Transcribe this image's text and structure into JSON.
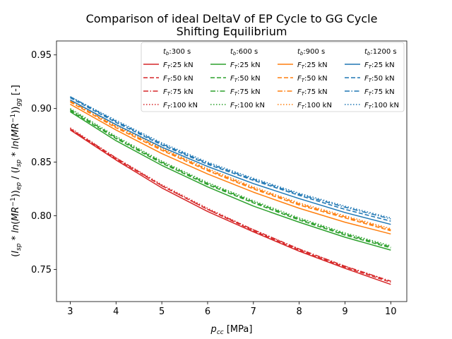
{
  "chart_data": {
    "type": "line",
    "title": "Comparison of ideal DeltaV of EP Cycle to GG Cycle",
    "subtitle": "Shifting Equilibrium",
    "xlabel": "p_cc [MPa]",
    "ylabel": "(I_sp * ln(MR^-1))_ep / (I_sp * ln(MR^-1))_gg [-]",
    "xlim": [
      2.7,
      10.35
    ],
    "ylim": [
      0.72,
      0.963
    ],
    "xticks": [
      3,
      4,
      5,
      6,
      7,
      8,
      9,
      10
    ],
    "yticks": [
      0.75,
      0.8,
      0.85,
      0.9,
      0.95
    ],
    "ytick_labels": [
      "0.75",
      "0.80",
      "0.85",
      "0.90",
      "0.95"
    ],
    "grid": false,
    "legend_position": "top-right",
    "legend_columns": [
      {
        "header": "t_b:300 s",
        "color": "#d62728"
      },
      {
        "header": "t_b:600 s",
        "color": "#2ca02c"
      },
      {
        "header": "t_b:900 s",
        "color": "#ff7f0e"
      },
      {
        "header": "t_b:1200 s",
        "color": "#1f77b4"
      }
    ],
    "legend_rows": [
      {
        "label": "F_T:25 kN",
        "dash": "solid"
      },
      {
        "label": "F_T:50 kN",
        "dash": "dashed"
      },
      {
        "label": "F_T:75 kN",
        "dash": "dashdot"
      },
      {
        "label": "F_T:100 kN",
        "dash": "dotted"
      }
    ],
    "x": [
      3,
      4,
      5,
      6,
      7,
      8,
      9,
      10
    ],
    "series": [
      {
        "name": "t_b:300 s, F_T:25 kN",
        "color": "#d62728",
        "dash": "solid",
        "values": [
          0.88,
          0.852,
          0.826,
          0.804,
          0.785,
          0.767,
          0.751,
          0.736
        ]
      },
      {
        "name": "t_b:300 s, F_T:50 kN",
        "color": "#d62728",
        "dash": "dashed",
        "values": [
          0.881,
          0.853,
          0.828,
          0.806,
          0.786,
          0.768,
          0.752,
          0.738
        ]
      },
      {
        "name": "t_b:300 s, F_T:75 kN",
        "color": "#d62728",
        "dash": "dashdot",
        "values": [
          0.881,
          0.854,
          0.828,
          0.806,
          0.787,
          0.769,
          0.753,
          0.739
        ]
      },
      {
        "name": "t_b:300 s, F_T:100 kN",
        "color": "#d62728",
        "dash": "dotted",
        "values": [
          0.882,
          0.854,
          0.829,
          0.807,
          0.787,
          0.769,
          0.753,
          0.739
        ]
      },
      {
        "name": "t_b:600 s, F_T:25 kN",
        "color": "#2ca02c",
        "dash": "solid",
        "values": [
          0.897,
          0.87,
          0.847,
          0.827,
          0.809,
          0.794,
          0.78,
          0.768
        ]
      },
      {
        "name": "t_b:600 s, F_T:50 kN",
        "color": "#2ca02c",
        "dash": "dashed",
        "values": [
          0.898,
          0.872,
          0.849,
          0.829,
          0.812,
          0.796,
          0.782,
          0.77
        ]
      },
      {
        "name": "t_b:600 s, F_T:75 kN",
        "color": "#2ca02c",
        "dash": "dashdot",
        "values": [
          0.899,
          0.873,
          0.85,
          0.83,
          0.813,
          0.797,
          0.783,
          0.771
        ]
      },
      {
        "name": "t_b:600 s, F_T:100 kN",
        "color": "#2ca02c",
        "dash": "dotted",
        "values": [
          0.9,
          0.874,
          0.851,
          0.831,
          0.814,
          0.798,
          0.784,
          0.772
        ]
      },
      {
        "name": "t_b:900 s, F_T:25 kN",
        "color": "#ff7f0e",
        "dash": "solid",
        "values": [
          0.904,
          0.88,
          0.858,
          0.839,
          0.822,
          0.807,
          0.794,
          0.783
        ]
      },
      {
        "name": "t_b:900 s, F_T:50 kN",
        "color": "#ff7f0e",
        "dash": "dashed",
        "values": [
          0.906,
          0.882,
          0.861,
          0.842,
          0.825,
          0.81,
          0.798,
          0.786
        ]
      },
      {
        "name": "t_b:900 s, F_T:75 kN",
        "color": "#ff7f0e",
        "dash": "dashdot",
        "values": [
          0.907,
          0.883,
          0.862,
          0.843,
          0.826,
          0.811,
          0.799,
          0.787
        ]
      },
      {
        "name": "t_b:900 s, F_T:100 kN",
        "color": "#ff7f0e",
        "dash": "dotted",
        "values": [
          0.908,
          0.884,
          0.863,
          0.844,
          0.827,
          0.812,
          0.8,
          0.788
        ]
      },
      {
        "name": "t_b:1200 s, F_T:25 kN",
        "color": "#1f77b4",
        "dash": "solid",
        "values": [
          0.908,
          0.885,
          0.864,
          0.846,
          0.83,
          0.816,
          0.803,
          0.792
        ]
      },
      {
        "name": "t_b:1200 s, F_T:50 kN",
        "color": "#1f77b4",
        "dash": "dashed",
        "values": [
          0.91,
          0.887,
          0.866,
          0.848,
          0.833,
          0.819,
          0.806,
          0.795
        ]
      },
      {
        "name": "t_b:1200 s, F_T:75 kN",
        "color": "#1f77b4",
        "dash": "dashdot",
        "values": [
          0.911,
          0.888,
          0.867,
          0.849,
          0.834,
          0.82,
          0.808,
          0.797
        ]
      },
      {
        "name": "t_b:1200 s, F_T:100 kN",
        "color": "#1f77b4",
        "dash": "dotted",
        "values": [
          0.911,
          0.889,
          0.868,
          0.85,
          0.835,
          0.821,
          0.809,
          0.798
        ]
      }
    ]
  }
}
